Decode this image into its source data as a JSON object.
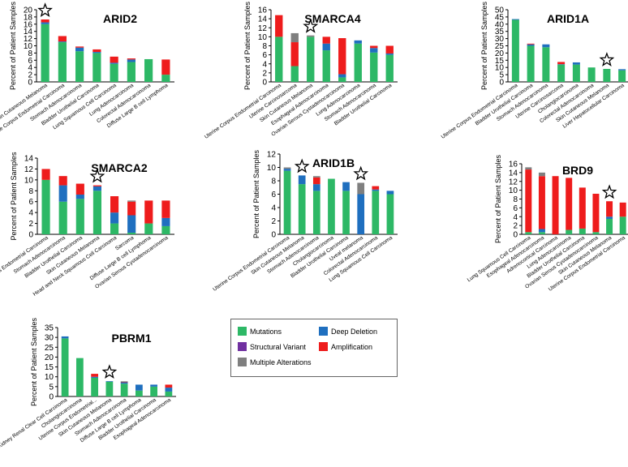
{
  "colors": {
    "Mutations": "#2db866",
    "Deep Deletion": "#1f6fbf",
    "Structural Variant": "#7030a0",
    "Amplification": "#ee1c1c",
    "Multiple Alterations": "#7f7f7f"
  },
  "legend": {
    "items": [
      {
        "label": "Mutations",
        "key": "Mutations"
      },
      {
        "label": "Deep Deletion",
        "key": "Deep Deletion"
      },
      {
        "label": "Structural Variant",
        "key": "Structural Variant"
      },
      {
        "label": "Amplification",
        "key": "Amplification"
      },
      {
        "label": "Multiple Alterations",
        "key": "Multiple Alterations"
      }
    ]
  },
  "chart_data": [
    {
      "type": "bar",
      "stacked": true,
      "title": "ARID2",
      "ylabel": "Percent of Patient Samples",
      "ylim": [
        0,
        20
      ],
      "yticks": [
        0,
        2,
        4,
        6,
        8,
        10,
        12,
        14,
        16,
        18,
        20
      ],
      "star_index": 0,
      "categories": [
        "Skin Cutaneous Melanoma",
        "Uterine Corpus Endometrial Carcinoma",
        "Stomach Adenocarcinoma",
        "Bladder Urothelial Carcinoma",
        "Lung Squamous Cell Carcinoma",
        "Lung Adenocarcinoma",
        "Colorectal Adenocarcinoma",
        "Diffuse Large B cell Lymphoma"
      ],
      "series": [
        {
          "name": "Mutations",
          "values": [
            16.0,
            11.0,
            8.5,
            8.0,
            5.0,
            5.5,
            6.3,
            2.0
          ]
        },
        {
          "name": "Deep Deletion",
          "values": [
            0.5,
            0.2,
            1.0,
            0.3,
            0.3,
            0.7,
            0,
            0
          ]
        },
        {
          "name": "Amplification",
          "values": [
            0.8,
            1.5,
            0.3,
            0.7,
            1.7,
            0.3,
            0,
            4.2
          ]
        }
      ]
    },
    {
      "type": "bar",
      "stacked": true,
      "title": "SMARCA4",
      "ylabel": "Percent of Patient Samples",
      "ylim": [
        0,
        16
      ],
      "yticks": [
        0,
        2,
        4,
        6,
        8,
        10,
        12,
        14,
        16
      ],
      "star_index": 2,
      "categories": [
        "Uterine Corpus Endometrial Carcinoma",
        "Uterine Carcinosarcoma",
        "Skin Cutaneous Melanoma",
        "Esophageal Adenocarcinoma",
        "Ovarian Serous Cystadenocarcinoma",
        "Lung Adenocarcinoma",
        "Stomach Adenocarcinoma",
        "Bladder Urothelial Carcinoma"
      ],
      "series": [
        {
          "name": "Mutations",
          "values": [
            10.0,
            3.5,
            10.0,
            7.0,
            1.0,
            8.5,
            6.5,
            6.0
          ]
        },
        {
          "name": "Deep Deletion",
          "values": [
            0,
            0,
            0,
            1.5,
            0.7,
            0.7,
            1.0,
            0.3
          ]
        },
        {
          "name": "Amplification",
          "values": [
            4.8,
            5.3,
            0,
            1.5,
            8.0,
            0,
            0.5,
            1.7
          ]
        },
        {
          "name": "Multiple Alterations",
          "values": [
            0,
            2.0,
            0.3,
            0,
            0,
            0,
            0,
            0
          ]
        }
      ]
    },
    {
      "type": "bar",
      "stacked": true,
      "title": "ARID1A",
      "ylabel": "Percent of Patient Samples",
      "ylim": [
        0,
        50
      ],
      "yticks": [
        0,
        5,
        10,
        15,
        20,
        25,
        30,
        35,
        40,
        45,
        50
      ],
      "star_index": 6,
      "categories": [
        "Uterine Corpus Endometrial Carcinoma",
        "Bladder Urothelial Carcinoma",
        "Stomach Adenocarcinoma",
        "Uterine Carcinosarcoma",
        "Cholangiocarcinoma",
        "Colorectal Adenocarcinoma",
        "Skin Cutaneous Melanoma",
        "Liver Hepatocellular Carcinoma"
      ],
      "series": [
        {
          "name": "Mutations",
          "values": [
            43.0,
            25.0,
            24.0,
            12.0,
            12.0,
            10.0,
            9.0,
            8.0
          ]
        },
        {
          "name": "Deep Deletion",
          "values": [
            0.5,
            1.0,
            2.0,
            0.3,
            1.5,
            0,
            0,
            0.8
          ]
        },
        {
          "name": "Amplification",
          "values": [
            0,
            0.5,
            0,
            1.5,
            0,
            0,
            0,
            0
          ]
        }
      ]
    },
    {
      "type": "bar",
      "stacked": true,
      "title": "SMARCA2",
      "ylabel": "Percent of Patient Samples",
      "ylim": [
        0,
        14
      ],
      "yticks": [
        0,
        2,
        4,
        6,
        8,
        10,
        12,
        14
      ],
      "star_index": 3,
      "categories": [
        "Uterine Corpus Endometrial Carcinoma",
        "Stomach Adenocarcinoma",
        "Bladder Urothelial Carcinoma",
        "Skin Cutaneous Melanoma",
        "Head and Neck Squamous Cell Carcinoma",
        "Sarcoma",
        "Diffuse Large B cell Lymphoma",
        "Ovarian Serous Cystadenocarcinoma"
      ],
      "series": [
        {
          "name": "Mutations",
          "values": [
            10.0,
            6.0,
            6.5,
            8.0,
            2.0,
            0.3,
            2.0,
            1.5
          ]
        },
        {
          "name": "Deep Deletion",
          "values": [
            0,
            3.0,
            0.8,
            0.8,
            2.0,
            3.2,
            0,
            1.5
          ]
        },
        {
          "name": "Amplification",
          "values": [
            2.0,
            1.7,
            2.0,
            0.2,
            3.0,
            2.5,
            4.2,
            3.2
          ]
        },
        {
          "name": "Multiple Alterations",
          "values": [
            0,
            0,
            0,
            0,
            0,
            0.2,
            0,
            0
          ]
        }
      ]
    },
    {
      "type": "bar",
      "stacked": true,
      "title": "ARID1B",
      "ylabel": "Percent of Patient Samples",
      "ylim": [
        0,
        12
      ],
      "yticks": [
        0,
        2,
        4,
        6,
        8,
        10,
        12
      ],
      "star_index": 1,
      "star_index_2": 5,
      "categories": [
        "Uterine Corpus Endometrial Carcinoma",
        "Skin Cutaneous Melanoma",
        "Stomach Adenocarcinoma",
        "Cholangiocarcinoma",
        "Bladder Urothelial Carcinoma",
        "Uveal melanoma",
        "Colorectal Adenocarcinoma",
        "Lung Squamous Cell Carcinoma"
      ],
      "series": [
        {
          "name": "Mutations",
          "values": [
            9.5,
            7.5,
            6.5,
            8.3,
            6.5,
            0,
            6.5,
            6.0
          ]
        },
        {
          "name": "Deep Deletion",
          "values": [
            0.3,
            1.3,
            1.0,
            0,
            1.3,
            6.0,
            0.2,
            0.5
          ]
        },
        {
          "name": "Amplification",
          "values": [
            0,
            0,
            1.0,
            0,
            0,
            0,
            0.5,
            0
          ]
        },
        {
          "name": "Multiple Alterations",
          "values": [
            0.2,
            0,
            0.2,
            0,
            0,
            1.7,
            0,
            0
          ]
        }
      ]
    },
    {
      "type": "bar",
      "stacked": true,
      "title": "BRD9",
      "ylabel": "Percent of Patient Samples",
      "ylim": [
        0,
        16
      ],
      "yticks": [
        0,
        2,
        4,
        6,
        8,
        10,
        12,
        14,
        16
      ],
      "star_index": 6,
      "categories": [
        "Lung Squamous Cell Carcinoma",
        "Esophageal Adenocarcinoma",
        "Adrenocortical Carcinoma",
        "Lung Adenocarcinoma",
        "Bladder Urothelial Carcinoma",
        "Ovarian Serous Cystadenocarcinoma",
        "Skin Cutaneous Melanoma",
        "Uterine Corpus Endometrial Carcinoma"
      ],
      "series": [
        {
          "name": "Mutations",
          "values": [
            0.5,
            0.5,
            0,
            1.0,
            1.3,
            0.5,
            3.5,
            4.0
          ]
        },
        {
          "name": "Deep Deletion",
          "values": [
            0,
            0.7,
            0,
            0,
            0,
            0,
            0.5,
            0
          ]
        },
        {
          "name": "Amplification",
          "values": [
            14.2,
            12.0,
            13.2,
            11.8,
            9.3,
            8.7,
            3.5,
            3.2
          ]
        },
        {
          "name": "Multiple Alterations",
          "values": [
            0.5,
            0.8,
            0,
            0,
            0,
            0,
            0,
            0
          ]
        }
      ]
    },
    {
      "type": "bar",
      "stacked": true,
      "title": "PBRM1",
      "ylabel": "Percent of Patient Samples",
      "ylim": [
        0,
        35
      ],
      "yticks": [
        0,
        5,
        10,
        15,
        20,
        25,
        30,
        35
      ],
      "star_index": 3,
      "categories": [
        "Kidney Renal Clear Cell Carcinoma",
        "Cholangiocarcinoma",
        "Uterine Corpus Endometrial...",
        "Skin Cutaneous Melanoma",
        "Stomach Adenocarcinoma",
        "Diffuse Large B cell Lymphoma",
        "Bladder Urothelial Carcinoma",
        "Esophageal Adenocarcinoma"
      ],
      "series": [
        {
          "name": "Mutations",
          "values": [
            29.5,
            19.5,
            9.5,
            7.5,
            6.5,
            3.0,
            5.0,
            2.5
          ]
        },
        {
          "name": "Deep Deletion",
          "values": [
            1.0,
            0,
            0.5,
            0.3,
            0.7,
            3.0,
            1.0,
            2.0
          ]
        },
        {
          "name": "Amplification",
          "values": [
            0,
            0,
            1.5,
            0,
            0.2,
            0,
            0,
            1.5
          ]
        },
        {
          "name": "Multiple Alterations",
          "values": [
            0,
            0,
            0,
            0,
            0.3,
            0,
            0,
            0
          ]
        }
      ]
    }
  ]
}
